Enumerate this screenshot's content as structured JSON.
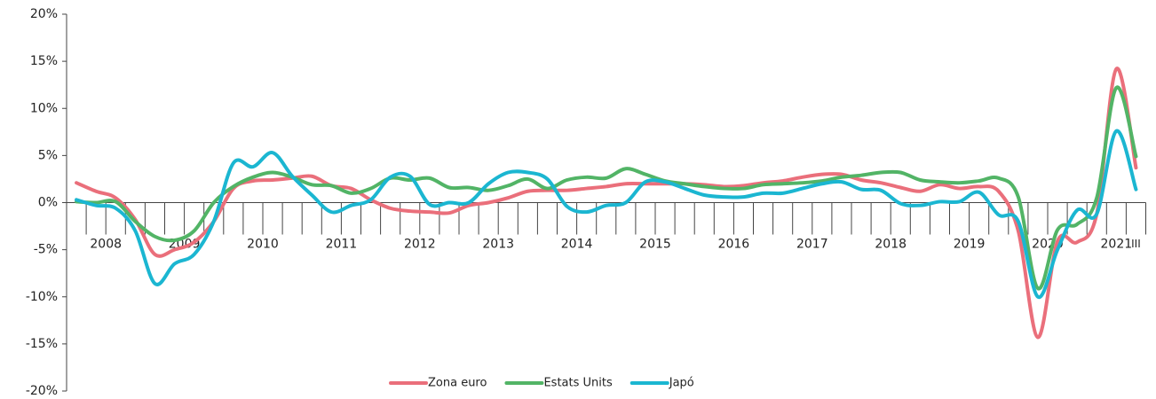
{
  "chart_data": {
    "type": "line",
    "x_groups": [
      "2008",
      "2009",
      "2010",
      "2011",
      "2012",
      "2013",
      "2014",
      "2015",
      "2016",
      "2017",
      "2018",
      "2019",
      "2020",
      "2021"
    ],
    "categories": [
      null,
      null,
      null,
      null,
      null,
      null,
      null,
      null,
      null,
      null,
      null,
      null,
      null,
      null,
      null,
      null,
      null,
      null,
      null,
      null,
      null,
      null,
      null,
      null,
      null,
      null,
      null,
      null,
      null,
      null,
      null,
      null,
      null,
      null,
      null,
      null,
      null,
      null,
      null,
      null,
      null,
      null,
      null,
      null,
      null,
      null,
      null,
      null,
      null,
      null,
      null,
      null,
      null,
      null,
      "III"
    ],
    "ylim": [
      -20,
      20
    ],
    "yticks": [
      {
        "value": -20,
        "label": "-20%"
      },
      {
        "value": -15,
        "label": "-15%"
      },
      {
        "value": -10,
        "label": "-10%"
      },
      {
        "value": -5,
        "label": "-5%"
      },
      {
        "value": 0,
        "label": "0%"
      },
      {
        "value": 5,
        "label": "5%"
      },
      {
        "value": 10,
        "label": "10%"
      },
      {
        "value": 15,
        "label": "15%"
      },
      {
        "value": 20,
        "label": "20%"
      }
    ],
    "legend": "bottom",
    "series": [
      {
        "name": "Zona euro",
        "color": "#ea6f7b",
        "values": [
          2.1,
          1.2,
          0.5,
          -1.8,
          -5.5,
          -5.0,
          -4.2,
          -2.0,
          1.5,
          2.3,
          2.4,
          2.6,
          2.8,
          1.8,
          1.5,
          0.3,
          -0.6,
          -0.9,
          -1.0,
          -1.1,
          -0.3,
          0.0,
          0.5,
          1.2,
          1.3,
          1.3,
          1.5,
          1.7,
          2.0,
          2.0,
          2.0,
          2.0,
          1.9,
          1.7,
          1.8,
          2.1,
          2.3,
          2.7,
          3.0,
          3.0,
          2.4,
          2.1,
          1.6,
          1.2,
          1.9,
          1.5,
          1.7,
          1.2,
          -3.0,
          -14.3,
          -4.1,
          -4.2,
          -1.2,
          14.2,
          3.7
        ]
      },
      {
        "name": "Estats Units",
        "color": "#52b466",
        "values": [
          0.1,
          0.0,
          0.1,
          -2.0,
          -3.6,
          -4.0,
          -3.0,
          0.0,
          1.7,
          2.7,
          3.2,
          2.7,
          1.9,
          1.8,
          1.0,
          1.5,
          2.6,
          2.4,
          2.6,
          1.6,
          1.6,
          1.3,
          1.8,
          2.5,
          1.5,
          2.4,
          2.7,
          2.6,
          3.6,
          3.0,
          2.3,
          2.0,
          1.7,
          1.5,
          1.5,
          1.9,
          2.0,
          2.1,
          2.3,
          2.7,
          2.9,
          3.2,
          3.2,
          2.4,
          2.2,
          2.1,
          2.3,
          2.6,
          0.6,
          -9.1,
          -2.9,
          -2.3,
          0.5,
          12.2,
          4.9
        ]
      },
      {
        "name": "Japó",
        "color": "#1bb6d1",
        "values": [
          0.3,
          -0.3,
          -0.6,
          -3.0,
          -8.6,
          -6.5,
          -5.5,
          -2.0,
          4.2,
          3.8,
          5.3,
          2.8,
          0.8,
          -1.0,
          -0.3,
          0.3,
          2.7,
          2.8,
          -0.2,
          0.0,
          0.0,
          2.0,
          3.2,
          3.2,
          2.5,
          -0.4,
          -1.0,
          -0.3,
          0.0,
          2.2,
          2.2,
          1.5,
          0.8,
          0.6,
          0.6,
          1.0,
          1.0,
          1.5,
          2.0,
          2.2,
          1.4,
          1.3,
          -0.1,
          -0.3,
          0.1,
          0.1,
          1.1,
          -1.3,
          -2.0,
          -10.0,
          -5.0,
          -0.8,
          -1.2,
          7.6,
          1.4
        ]
      }
    ]
  }
}
